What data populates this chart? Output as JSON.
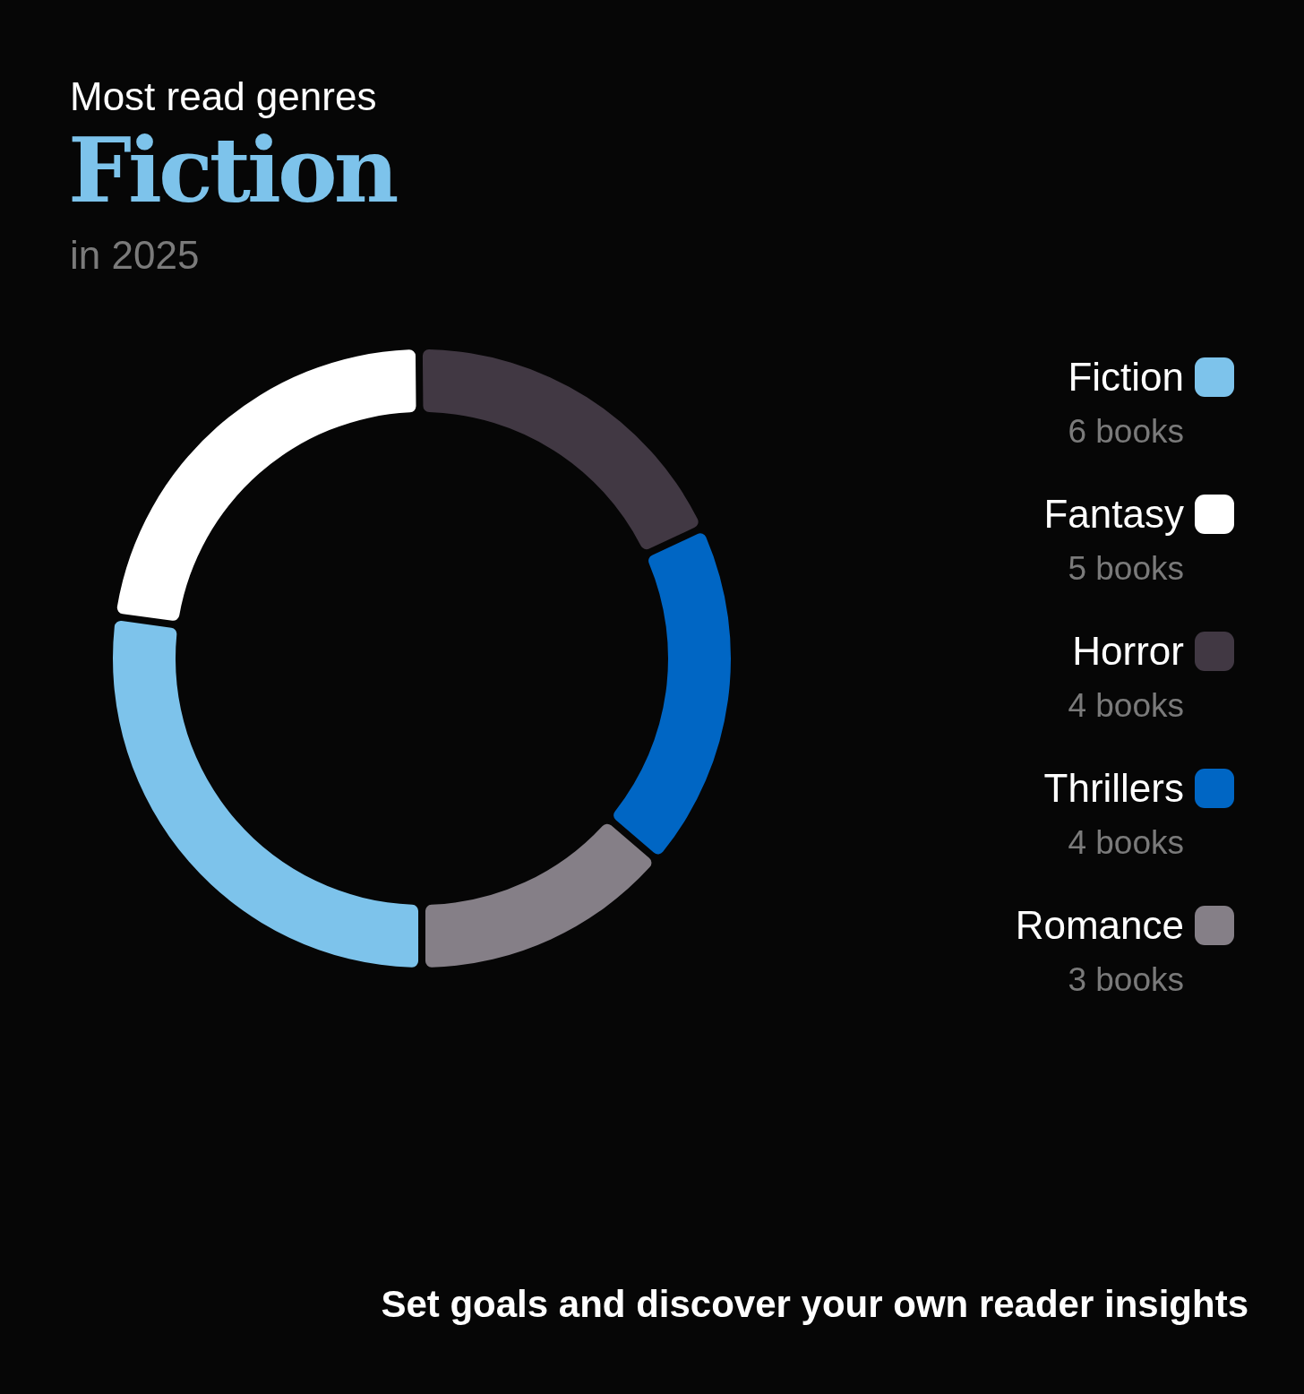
{
  "chart_data": {
    "type": "donut",
    "title": "Most read genres",
    "subtitle": "Fiction",
    "annotations": [
      "in 2025",
      "Set goals and discover your own reader insights"
    ],
    "categories": [
      "Fiction",
      "Fantasy",
      "Horror",
      "Thrillers",
      "Romance"
    ],
    "values": [
      6,
      5,
      4,
      4,
      3
    ],
    "colors": [
      "#7dc3eb",
      "#ffffff",
      "#413843",
      "#0066c4",
      "#857f87"
    ],
    "value_labels": [
      "6 books",
      "5 books",
      "4 books",
      "4 books",
      "3 books"
    ],
    "legend": "right"
  }
}
